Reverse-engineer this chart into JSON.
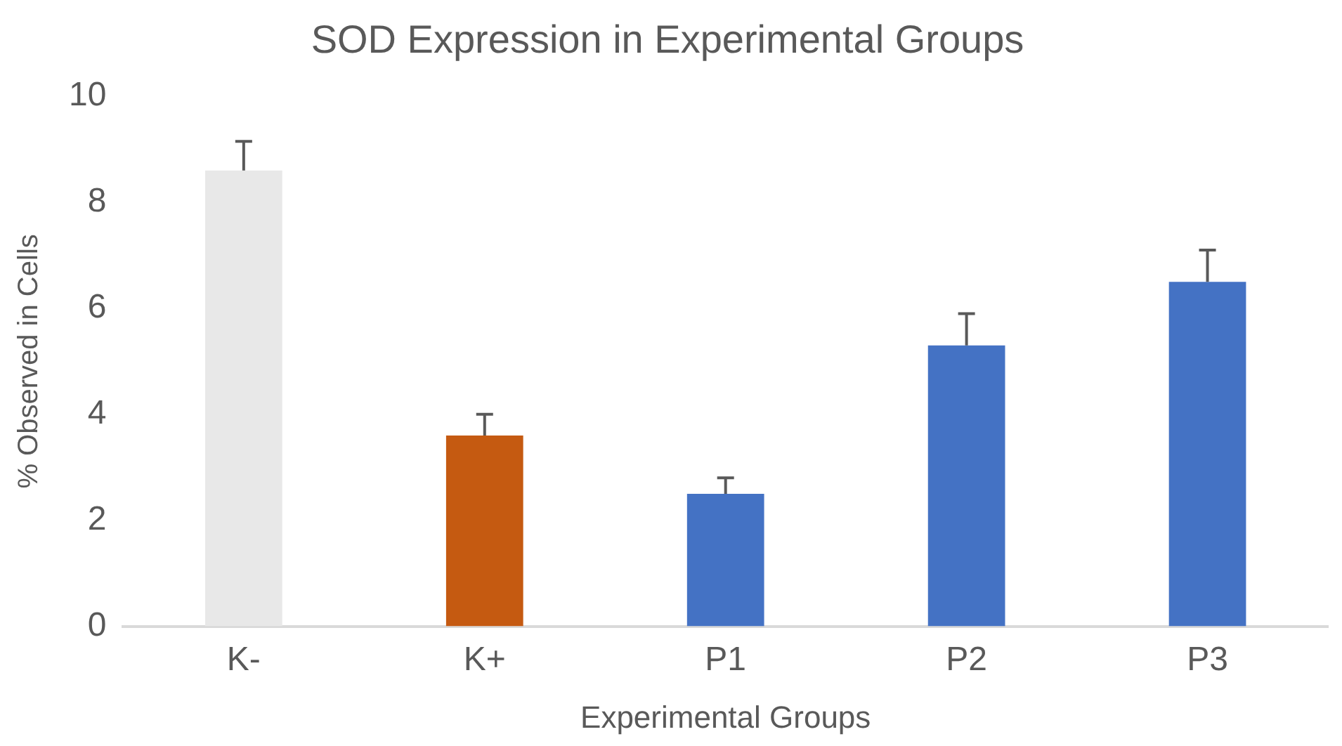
{
  "chart_data": {
    "type": "bar",
    "title": "SOD Expression in Experimental Groups",
    "xlabel": "Experimental Groups",
    "ylabel": "% Observed in Cells",
    "categories": [
      "K-",
      "K+",
      "P1",
      "P2",
      "P3"
    ],
    "values": [
      8.6,
      3.6,
      2.5,
      5.3,
      6.5
    ],
    "colors": [
      "#e8e8e8",
      "#c55a11",
      "#4472c4",
      "#4472c4",
      "#4472c4"
    ],
    "errors": [
      [
        8.6,
        9.15
      ],
      [
        3.6,
        4.0
      ],
      [
        2.5,
        2.8
      ],
      [
        5.3,
        5.9
      ],
      [
        6.5,
        7.1
      ]
    ],
    "ylim": [
      0,
      10
    ],
    "yticks": [
      0,
      2,
      4,
      6,
      8,
      10
    ],
    "grid": false,
    "legend": false
  }
}
